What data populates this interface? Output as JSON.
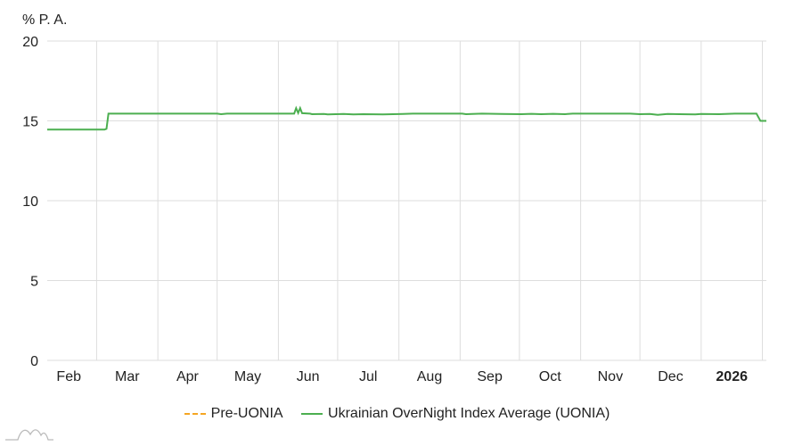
{
  "chart_data": {
    "type": "line",
    "ylabel": "% P. A.",
    "ylim": [
      0,
      20
    ],
    "yticks": [
      0,
      5,
      10,
      15,
      20
    ],
    "x_unit": "days since 2025-02-04",
    "xlim": [
      0,
      364
    ],
    "xticks": [
      {
        "label": "Feb",
        "day": 0,
        "bold": false
      },
      {
        "label": "Mar",
        "day": 25,
        "bold": false
      },
      {
        "label": "Apr",
        "day": 56,
        "bold": false
      },
      {
        "label": "May",
        "day": 86,
        "bold": false
      },
      {
        "label": "Jun",
        "day": 117,
        "bold": false
      },
      {
        "label": "Jul",
        "day": 147,
        "bold": false
      },
      {
        "label": "Aug",
        "day": 178,
        "bold": false
      },
      {
        "label": "Sep",
        "day": 209,
        "bold": false
      },
      {
        "label": "Oct",
        "day": 239,
        "bold": false
      },
      {
        "label": "Nov",
        "day": 270,
        "bold": false
      },
      {
        "label": "Dec",
        "day": 300,
        "bold": false
      },
      {
        "label": "2026",
        "day": 331,
        "bold": true
      },
      {
        "label": "",
        "day": 362,
        "bold": false
      }
    ],
    "grid": true,
    "legend_position": "bottom",
    "series": [
      {
        "name": "Pre-UONIA",
        "color": "#f5a623",
        "dashed": true,
        "points": []
      },
      {
        "name": "Ukrainian OverNight Index Average (UONIA)",
        "color": "#4caf50",
        "dashed": false,
        "points": [
          [
            0,
            14.45
          ],
          [
            29,
            14.45
          ],
          [
            30,
            14.5
          ],
          [
            31,
            15.45
          ],
          [
            60,
            15.45
          ],
          [
            86,
            15.45
          ],
          [
            88,
            15.42
          ],
          [
            91,
            15.45
          ],
          [
            125,
            15.45
          ],
          [
            126,
            15.8
          ],
          [
            127,
            15.5
          ],
          [
            128,
            15.8
          ],
          [
            129,
            15.48
          ],
          [
            133,
            15.45
          ],
          [
            134,
            15.42
          ],
          [
            140,
            15.43
          ],
          [
            142,
            15.4
          ],
          [
            146,
            15.42
          ],
          [
            150,
            15.43
          ],
          [
            155,
            15.4
          ],
          [
            160,
            15.42
          ],
          [
            170,
            15.4
          ],
          [
            180,
            15.43
          ],
          [
            185,
            15.45
          ],
          [
            210,
            15.45
          ],
          [
            212,
            15.42
          ],
          [
            215,
            15.43
          ],
          [
            220,
            15.45
          ],
          [
            230,
            15.43
          ],
          [
            240,
            15.42
          ],
          [
            245,
            15.44
          ],
          [
            250,
            15.42
          ],
          [
            256,
            15.44
          ],
          [
            262,
            15.42
          ],
          [
            266,
            15.45
          ],
          [
            295,
            15.45
          ],
          [
            300,
            15.42
          ],
          [
            305,
            15.43
          ],
          [
            309,
            15.38
          ],
          [
            314,
            15.43
          ],
          [
            320,
            15.42
          ],
          [
            328,
            15.4
          ],
          [
            331,
            15.43
          ],
          [
            340,
            15.42
          ],
          [
            348,
            15.45
          ],
          [
            359,
            15.45
          ],
          [
            361,
            15.0
          ],
          [
            364,
            15.0
          ]
        ]
      }
    ]
  }
}
